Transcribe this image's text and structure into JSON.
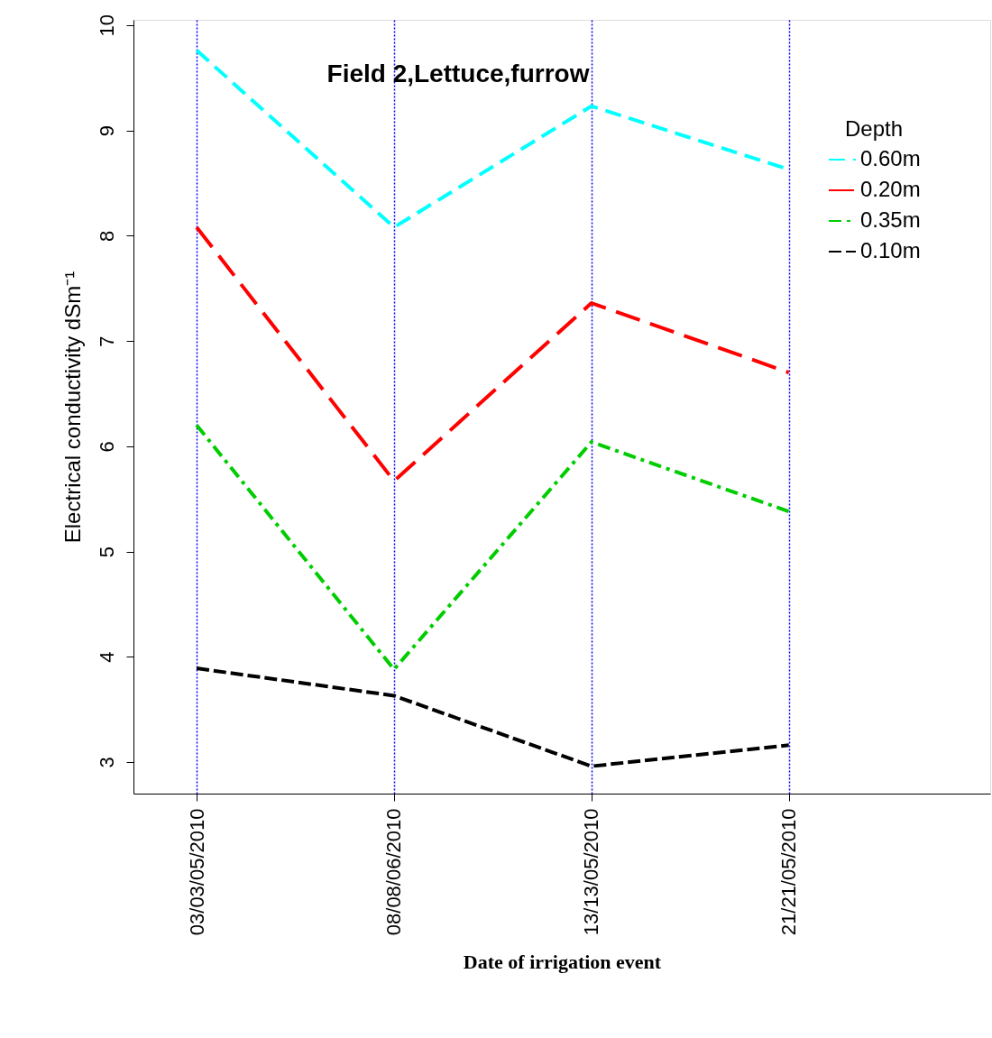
{
  "chart_data": {
    "type": "line",
    "title": "Field 2,Lettuce,furrow",
    "xlabel": "Date of irrigation event",
    "ylabel": "Electrical conductivity dSm⁻¹",
    "legend_title": "Depth",
    "categories": [
      "03/03/05/2010",
      "08/08/06/2010",
      "13/13/05/2010",
      "21/21/05/2010"
    ],
    "series": [
      {
        "name": "0.60m",
        "color": "#00ffff",
        "line_style": "dashed",
        "values": [
          9.76,
          8.08,
          9.23,
          8.63
        ]
      },
      {
        "name": "0.20m",
        "color": "#ff0000",
        "line_style": "dashed",
        "values": [
          8.08,
          5.67,
          7.36,
          6.7
        ]
      },
      {
        "name": "0.35m",
        "color": "#00cd00",
        "line_style": "dashed",
        "values": [
          6.2,
          3.88,
          6.04,
          5.38
        ]
      },
      {
        "name": "0.10m",
        "color": "#000000",
        "line_style": "dashed",
        "values": [
          3.89,
          3.63,
          2.96,
          3.16
        ]
      }
    ],
    "ylim": [
      2.7,
      10.05
    ],
    "yticks": [
      3,
      4,
      5,
      6,
      7,
      8,
      9,
      10
    ],
    "grid": "x",
    "legend": "top right",
    "marker": "none"
  }
}
